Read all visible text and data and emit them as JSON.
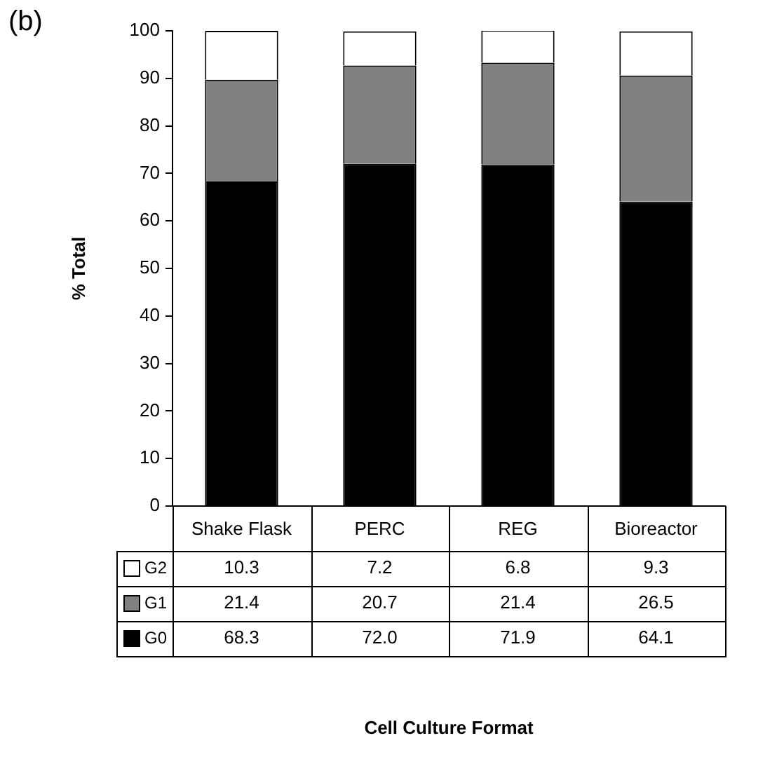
{
  "chart_data": {
    "type": "bar",
    "title": "(b)",
    "ylabel": "% Total",
    "annotations": [
      "Cell Culture Format"
    ],
    "categories": [
      "Shake Flask",
      "PERC",
      "REG",
      "Bioreactor"
    ],
    "stacked": true,
    "ylim": [
      0,
      100
    ],
    "yticks": [
      0,
      10,
      20,
      30,
      40,
      50,
      60,
      70,
      80,
      90,
      100
    ],
    "grid": false,
    "legend": "bottom",
    "series": [
      {
        "name": "G0",
        "color": "#000000",
        "values": [
          68.3,
          72.0,
          71.9,
          64.1
        ],
        "value_labels": [
          "68.3",
          "72.0",
          "71.9",
          "64.1"
        ]
      },
      {
        "name": "G1",
        "color": "#808080",
        "values": [
          21.4,
          20.7,
          21.4,
          26.5
        ],
        "value_labels": [
          "21.4",
          "20.7",
          "21.4",
          "26.5"
        ]
      },
      {
        "name": "G2",
        "color": "#ffffff",
        "values": [
          10.3,
          7.2,
          6.8,
          9.3
        ],
        "value_labels": [
          "10.3",
          "7.2",
          "6.8",
          "9.3"
        ]
      }
    ]
  }
}
